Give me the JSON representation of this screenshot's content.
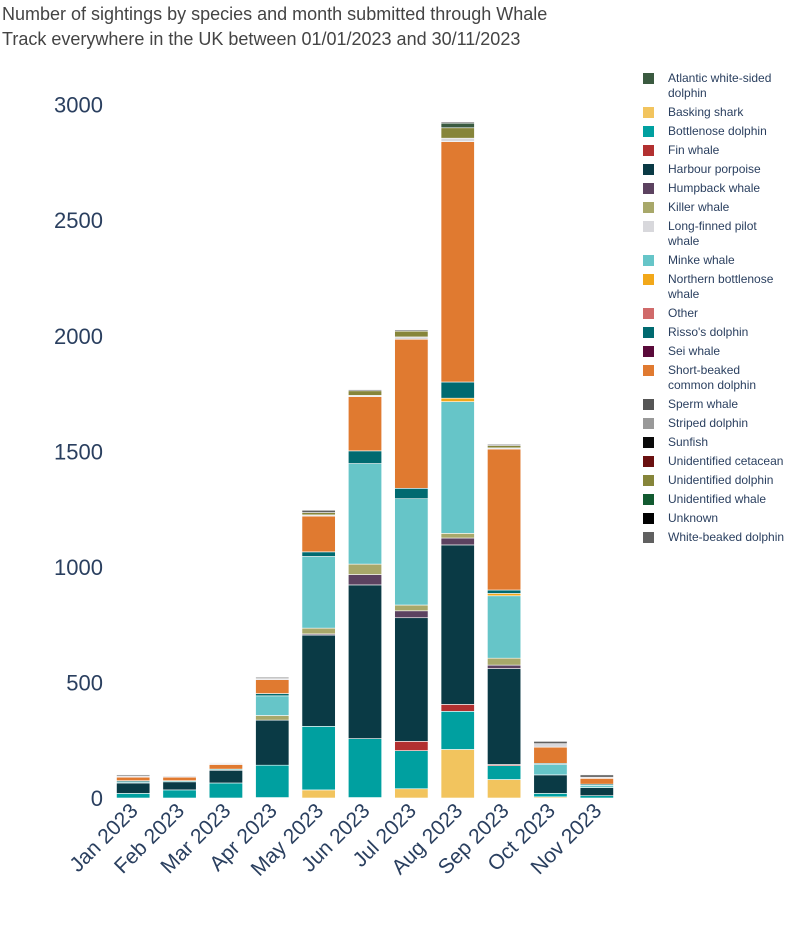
{
  "chart_data": {
    "type": "bar",
    "stacked": true,
    "title_lines": [
      "Number of sightings by species and month submitted through Whale",
      "Track everywhere in the UK between 01/01/2023 and 30/11/2023"
    ],
    "xlabel": "",
    "ylabel": "",
    "ylim": [
      0,
      3150
    ],
    "yticks": [
      0,
      500,
      1000,
      1500,
      2000,
      2500,
      3000
    ],
    "legend_position": "right",
    "categories": [
      "Jan 2023",
      "Feb 2023",
      "Mar 2023",
      "Apr 2023",
      "May 2023",
      "Jun 2023",
      "Jul 2023",
      "Aug 2023",
      "Sep 2023",
      "Oct 2023",
      "Nov 2023"
    ],
    "series": [
      {
        "name": "Basking shark",
        "legend": [
          "Basking shark"
        ],
        "color": "#f2c45e",
        "values": [
          0,
          0,
          0,
          2,
          35,
          2,
          40,
          210,
          80,
          5,
          0
        ]
      },
      {
        "name": "Bottlenose dolphin",
        "legend": [
          "Bottlenose dolphin"
        ],
        "color": "#00a0a0",
        "values": [
          20,
          35,
          65,
          140,
          275,
          255,
          165,
          165,
          60,
          15,
          10
        ]
      },
      {
        "name": "Fin whale",
        "legend": [
          "Fin whale"
        ],
        "color": "#b23030",
        "values": [
          0,
          0,
          0,
          0,
          0,
          0,
          40,
          30,
          5,
          0,
          0
        ]
      },
      {
        "name": "Harbour porpoise",
        "legend": [
          "Harbour porpoise"
        ],
        "color": "#0a3a45",
        "values": [
          45,
          35,
          55,
          195,
          395,
          665,
          535,
          690,
          415,
          80,
          35
        ]
      },
      {
        "name": "Humpback whale",
        "legend": [
          "Humpback whale"
        ],
        "color": "#5c4260",
        "values": [
          0,
          0,
          0,
          0,
          5,
          45,
          30,
          30,
          15,
          0,
          0
        ]
      },
      {
        "name": "Killer whale",
        "legend": [
          "Killer whale"
        ],
        "color": "#a8a86a",
        "values": [
          0,
          0,
          0,
          20,
          25,
          45,
          25,
          20,
          30,
          0,
          0
        ]
      },
      {
        "name": "Minke whale",
        "legend": [
          "Minke whale"
        ],
        "color": "#66c5c8",
        "values": [
          5,
          5,
          5,
          85,
          310,
          435,
          460,
          570,
          270,
          45,
          10
        ]
      },
      {
        "name": "Northern bottlenose whale",
        "legend": [
          "Northern bottlenose",
          " whale"
        ],
        "color": "#f2a81a",
        "values": [
          0,
          0,
          0,
          0,
          0,
          0,
          0,
          15,
          10,
          0,
          0
        ]
      },
      {
        "name": "Risso's dolphin",
        "legend": [
          "Risso's dolphin"
        ],
        "color": "#006a70",
        "values": [
          5,
          0,
          0,
          10,
          20,
          55,
          45,
          70,
          15,
          5,
          5
        ]
      },
      {
        "name": "Short-beaked common dolphin",
        "legend": [
          "Short-beaked",
          " common dolphin"
        ],
        "color": "#e07a30",
        "values": [
          15,
          15,
          20,
          60,
          155,
          235,
          645,
          1040,
          610,
          70,
          25
        ]
      },
      {
        "name": "Long-finned pilot whale",
        "legend": [
          "Long-finned pilot",
          " whale"
        ],
        "color": "#d8d8dc",
        "values": [
          5,
          5,
          5,
          5,
          5,
          5,
          10,
          15,
          5,
          15,
          5
        ]
      },
      {
        "name": "Unidentified dolphin",
        "legend": [
          "Unidentified dolphin"
        ],
        "color": "#86853a",
        "values": [
          0,
          0,
          0,
          0,
          10,
          20,
          25,
          45,
          10,
          0,
          0
        ]
      },
      {
        "name": "Atlantic white-sided dolphin",
        "legend": [
          "Atlantic white-sided",
          " dolphin"
        ],
        "color": "#3a5a40",
        "values": [
          0,
          0,
          0,
          0,
          0,
          0,
          0,
          20,
          0,
          0,
          0
        ]
      },
      {
        "name": "Other",
        "legend": [
          "Other"
        ],
        "color": "#d06a6a",
        "values": [
          0,
          0,
          0,
          0,
          0,
          0,
          0,
          0,
          0,
          0,
          0
        ]
      },
      {
        "name": "Sei whale",
        "legend": [
          "Sei whale"
        ],
        "color": "#5a0a3a",
        "values": [
          0,
          0,
          0,
          0,
          0,
          0,
          0,
          0,
          0,
          0,
          0
        ]
      },
      {
        "name": "Sperm whale",
        "legend": [
          "Sperm whale"
        ],
        "color": "#555555",
        "values": [
          0,
          0,
          0,
          0,
          0,
          0,
          0,
          0,
          0,
          0,
          0
        ]
      },
      {
        "name": "Striped dolphin",
        "legend": [
          "Striped dolphin"
        ],
        "color": "#999999",
        "values": [
          0,
          0,
          0,
          0,
          0,
          0,
          0,
          0,
          0,
          0,
          0
        ]
      },
      {
        "name": "Sunfish",
        "legend": [
          "Sunfish"
        ],
        "color": "#0a0a0a",
        "values": [
          0,
          0,
          0,
          0,
          0,
          0,
          0,
          0,
          0,
          0,
          0
        ]
      },
      {
        "name": "Unidentified cetacean",
        "legend": [
          "Unidentified cetacean"
        ],
        "color": "#6a1010",
        "values": [
          0,
          0,
          0,
          0,
          0,
          0,
          0,
          0,
          0,
          0,
          0
        ]
      },
      {
        "name": "Unidentified whale",
        "legend": [
          "Unidentified whale"
        ],
        "color": "#125a30",
        "values": [
          0,
          0,
          0,
          0,
          0,
          0,
          0,
          0,
          0,
          0,
          0
        ]
      },
      {
        "name": "Unknown",
        "legend": [
          "Unknown"
        ],
        "color": "#000000",
        "values": [
          0,
          0,
          0,
          0,
          0,
          0,
          0,
          0,
          0,
          0,
          0
        ]
      },
      {
        "name": "White-beaked dolphin",
        "legend": [
          "White-beaked dolphin"
        ],
        "color": "#606060",
        "values": [
          5,
          2,
          2,
          5,
          10,
          5,
          5,
          5,
          5,
          10,
          10
        ]
      }
    ],
    "legend_order": [
      "Atlantic white-sided dolphin",
      "Basking shark",
      "Bottlenose dolphin",
      "Fin whale",
      "Harbour porpoise",
      "Humpback whale",
      "Killer whale",
      "Long-finned pilot whale",
      "Minke whale",
      "Northern bottlenose whale",
      "Other",
      "Risso's dolphin",
      "Sei whale",
      "Short-beaked common dolphin",
      "Sperm whale",
      "Striped dolphin",
      "Sunfish",
      "Unidentified cetacean",
      "Unidentified dolphin",
      "Unidentified whale",
      "Unknown",
      "White-beaked dolphin"
    ]
  }
}
